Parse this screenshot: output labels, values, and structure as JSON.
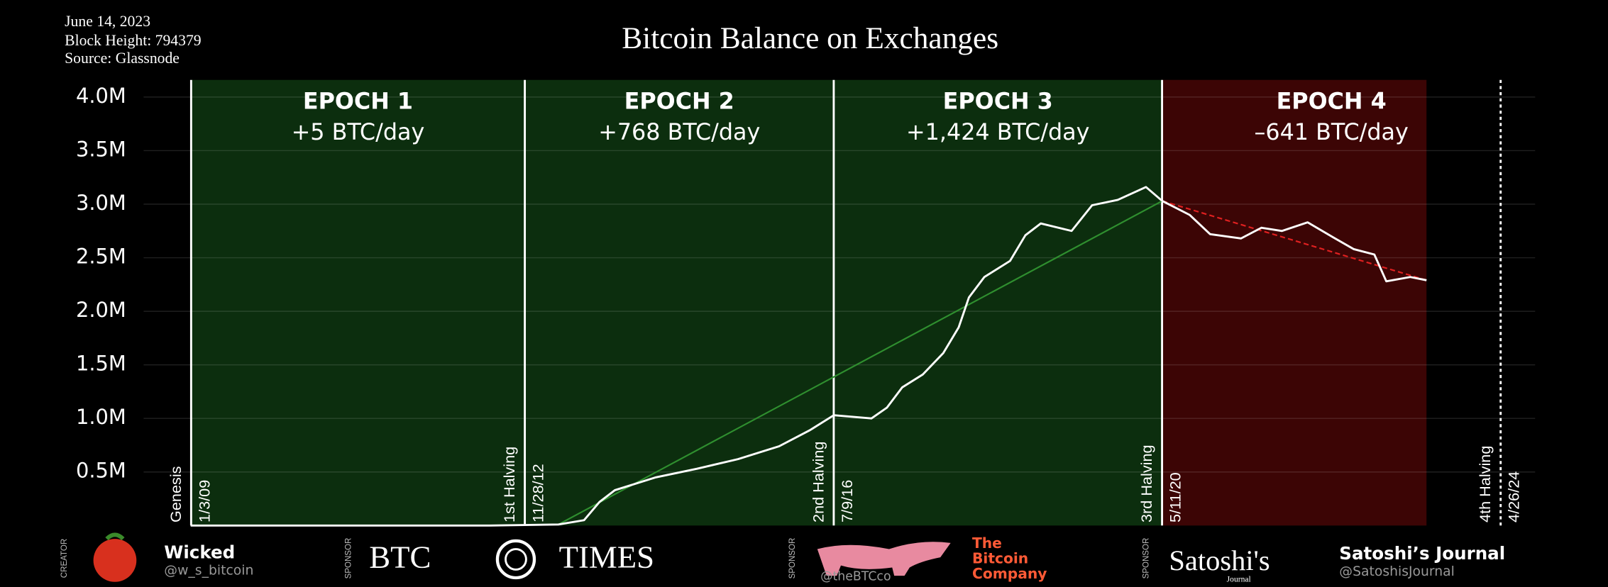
{
  "chart_data": {
    "type": "line",
    "title": "Bitcoin Balance on Exchanges",
    "info": [
      "June 14, 2023",
      "Block Height: 794379",
      "Source: Glassnode"
    ],
    "xlim": [
      2008.45,
      2024.72
    ],
    "ylim": [
      0,
      4160000
    ],
    "yticks": [
      {
        "value": 500000,
        "label": "0.5M"
      },
      {
        "value": 1000000,
        "label": "1.0M"
      },
      {
        "value": 1500000,
        "label": "1.5M"
      },
      {
        "value": 2000000,
        "label": "2.0M"
      },
      {
        "value": 2500000,
        "label": "2.5M"
      },
      {
        "value": 3000000,
        "label": "3.0M"
      },
      {
        "value": 3500000,
        "label": "3.5M"
      },
      {
        "value": 4000000,
        "label": "4.0M"
      }
    ],
    "grid": true,
    "events": [
      {
        "label": "Genesis",
        "date": "1/3/09",
        "style": "solid"
      },
      {
        "label": "1st Halving",
        "date": "11/28/12",
        "style": "solid"
      },
      {
        "label": "2nd Halving",
        "date": "7/9/16",
        "style": "solid"
      },
      {
        "label": "3rd Halving",
        "date": "5/11/20",
        "style": "solid"
      },
      {
        "label": "4th Halving",
        "date": "4/26/24",
        "style": "dotted"
      }
    ],
    "epochs": [
      {
        "name": "EPOCH 1",
        "rate": "+5 BTC/day",
        "color": "#0c2e0e"
      },
      {
        "name": "EPOCH 2",
        "rate": "+768 BTC/day",
        "color": "#0c2e0e"
      },
      {
        "name": "EPOCH 3",
        "rate": "+1,424 BTC/day",
        "color": "#0c2e0e"
      },
      {
        "name": "EPOCH 4",
        "rate": "–641 BTC/day",
        "color": "#3c0505"
      }
    ],
    "series": [
      {
        "color": "#ffffff",
        "x": [
          2009.0,
          2012.5,
          2013.3,
          2013.6,
          2013.78,
          2013.96,
          2014.44,
          2014.92,
          2015.4,
          2015.88,
          2016.24,
          2016.52,
          2016.96,
          2017.14,
          2017.32,
          2017.56,
          2017.8,
          2017.98,
          2018.1,
          2018.28,
          2018.58,
          2018.76,
          2018.94,
          2019.3,
          2019.54,
          2019.84,
          2020.17,
          2020.36,
          2020.68,
          2020.92,
          2021.28,
          2021.52,
          2021.76,
          2022.06,
          2022.36,
          2022.6,
          2022.84,
          2022.98,
          2023.26,
          2023.45
        ],
        "values": [
          0,
          0,
          10000,
          50000,
          220000,
          330000,
          450000,
          530000,
          620000,
          740000,
          890000,
          1030000,
          1000000,
          1100000,
          1290000,
          1410000,
          1610000,
          1850000,
          2130000,
          2320000,
          2470000,
          2710000,
          2820000,
          2750000,
          2990000,
          3040000,
          3160000,
          3030000,
          2900000,
          2720000,
          2680000,
          2780000,
          2750000,
          2830000,
          2690000,
          2580000,
          2530000,
          2280000,
          2320000,
          2290000
        ]
      }
    ],
    "trendlines": [
      {
        "color": "#2f8f2f",
        "style": "solid",
        "x": [
          2013.3,
          2020.36
        ],
        "values": [
          10000,
          3030000
        ]
      },
      {
        "color": "#e02020",
        "style": "dashed",
        "x": [
          2020.36,
          2023.45
        ],
        "values": [
          3030000,
          2290000
        ]
      }
    ]
  },
  "footer": {
    "creator": {
      "role": "CREATOR",
      "name": "Wicked",
      "handle": "@w_s_bitcoin"
    },
    "btc_times": {
      "role": "SPONSOR",
      "left": "BTC",
      "right": "TIMES"
    },
    "bitcoin_company": {
      "role": "SPONSOR",
      "lines": [
        "The",
        "Bitcoin",
        "Company"
      ],
      "handle": "@theBTCco"
    },
    "satoshis_journal": {
      "role": "SPONSOR",
      "logo": "Satoshi's",
      "logo_sub": "Journal",
      "name": "Satoshi’s Journal",
      "handle": "@SatoshisJournal"
    }
  }
}
